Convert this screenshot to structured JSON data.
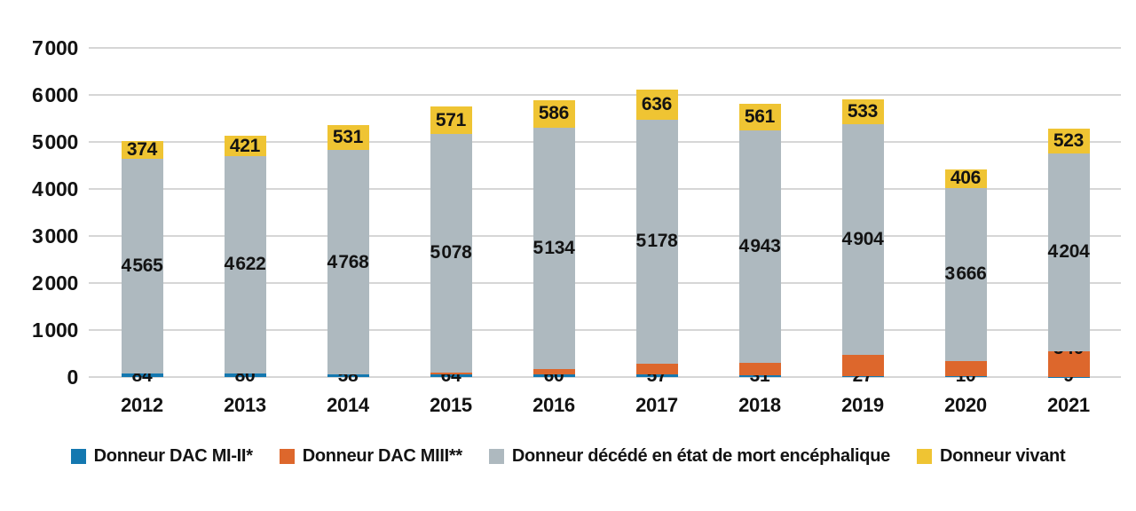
{
  "chart_data": {
    "type": "bar",
    "stacked": true,
    "title": "",
    "xlabel": "",
    "ylabel": "",
    "ylim": [
      0,
      7000
    ],
    "ytick_step": 1000,
    "ytick_labels": [
      "0",
      "1 000",
      "2 000",
      "3 000",
      "4 000",
      "5 000",
      "6 000",
      "7 000"
    ],
    "grid": true,
    "legend_position": "bottom",
    "categories": [
      "2012",
      "2013",
      "2014",
      "2015",
      "2016",
      "2017",
      "2018",
      "2019",
      "2020",
      "2021"
    ],
    "series": [
      {
        "key": "dac_mi_ii",
        "name": "Donneur DAC MI-II*",
        "color": "#1478b0",
        "values": [
          84,
          80,
          58,
          64,
          60,
          57,
          31,
          27,
          10,
          9
        ],
        "labels": [
          "84",
          "80",
          "58",
          "64",
          "60",
          "57",
          "31",
          "27",
          "10",
          "9"
        ]
      },
      {
        "key": "dac_miii",
        "name": "Donneur DAC MIII**",
        "color": "#dd672c",
        "values": [
          0,
          0,
          0,
          33,
          111,
          234,
          271,
          437,
          339,
          540
        ],
        "labels": [
          "0",
          "0",
          "0",
          "33",
          "111",
          "234",
          "271",
          "437",
          "339",
          "540"
        ]
      },
      {
        "key": "mort_encephalique",
        "name": "Donneur décédé en état de mort encéphalique",
        "color": "#aeb9bf",
        "values": [
          4565,
          4622,
          4768,
          5078,
          5134,
          5178,
          4943,
          4904,
          3666,
          4204
        ],
        "labels": [
          "4 565",
          "4 622",
          "4 768",
          "5 078",
          "5 134",
          "5 178",
          "4 943",
          "4 904",
          "3 666",
          "4 204"
        ]
      },
      {
        "key": "vivant",
        "name": "Donneur vivant",
        "color": "#efc433",
        "values": [
          374,
          421,
          531,
          571,
          586,
          636,
          561,
          533,
          406,
          523
        ],
        "labels": [
          "374",
          "421",
          "531",
          "571",
          "586",
          "636",
          "561",
          "533",
          "406",
          "523"
        ]
      }
    ]
  }
}
